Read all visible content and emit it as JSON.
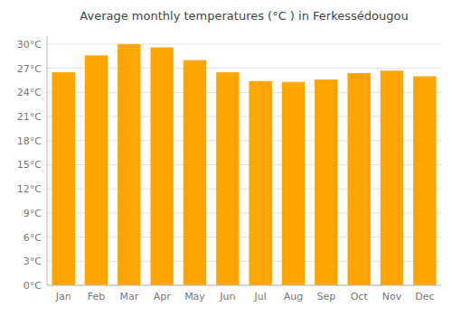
{
  "chart_data": {
    "type": "bar",
    "title": "Average monthly temperatures (°C ) in Ferkessédougou",
    "categories": [
      "Jan",
      "Feb",
      "Mar",
      "Apr",
      "May",
      "Jun",
      "Jul",
      "Aug",
      "Sep",
      "Oct",
      "Nov",
      "Dec"
    ],
    "values": [
      26.5,
      28.6,
      30.0,
      29.6,
      28.0,
      26.5,
      25.4,
      25.3,
      25.6,
      26.4,
      26.7,
      26.0
    ],
    "color": "#FFA500",
    "ylim": [
      0,
      31
    ],
    "yticks": [
      {
        "value": 0,
        "label": "0°C"
      },
      {
        "value": 3,
        "label": "3°C"
      },
      {
        "value": 6,
        "label": "6°C"
      },
      {
        "value": 9,
        "label": "9°C"
      },
      {
        "value": 12,
        "label": "12°C"
      },
      {
        "value": 15,
        "label": "15°C"
      },
      {
        "value": 18,
        "label": "18°C"
      },
      {
        "value": 21,
        "label": "21°C"
      },
      {
        "value": 24,
        "label": "24°C"
      },
      {
        "value": 27,
        "label": "27°C"
      },
      {
        "value": 30,
        "label": "30°C"
      }
    ],
    "grid": true
  }
}
